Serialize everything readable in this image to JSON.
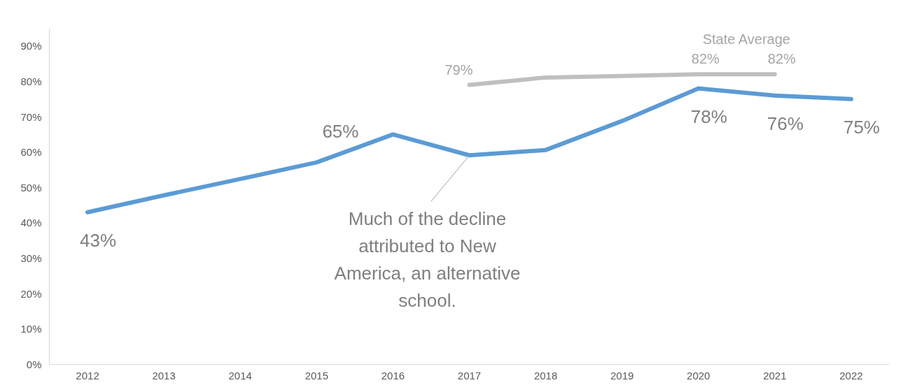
{
  "chart_data": {
    "type": "line",
    "categories": [
      "2012",
      "2013",
      "2014",
      "2015",
      "2016",
      "2017",
      "2018",
      "2019",
      "2020",
      "2021",
      "2022"
    ],
    "series": [
      {
        "color": "#5b9bd5",
        "values": [
          43,
          47.8,
          52.4,
          57.1,
          65,
          59.1,
          60.6,
          68.8,
          78,
          76,
          75
        ],
        "value_labels": [
          "43%",
          null,
          null,
          null,
          "65%",
          null,
          null,
          null,
          "78%",
          "76%",
          "75%"
        ]
      },
      {
        "name": "State Average",
        "color": "#bfbfbf",
        "values": [
          null,
          null,
          null,
          null,
          null,
          79,
          81.1,
          81.5,
          82,
          82,
          null
        ],
        "value_labels": [
          null,
          null,
          null,
          null,
          null,
          "79%",
          null,
          null,
          "82%",
          "82%",
          null
        ]
      }
    ],
    "ylim": [
      0,
      95
    ],
    "yticks": [
      {
        "value": 0,
        "label": "0%"
      },
      {
        "value": 10,
        "label": "10%"
      },
      {
        "value": 20,
        "label": "20%"
      },
      {
        "value": 30,
        "label": "30%"
      },
      {
        "value": 40,
        "label": "40%"
      },
      {
        "value": 50,
        "label": "50%"
      },
      {
        "value": 60,
        "label": "60%"
      },
      {
        "value": 70,
        "label": "70%"
      },
      {
        "value": 80,
        "label": "80%"
      },
      {
        "value": 90,
        "label": "90%"
      }
    ],
    "annotations": [
      {
        "text": "Much of the decline attributed to New America, an alternative school.",
        "x": "2017",
        "y": 59.1
      }
    ],
    "grid": false,
    "marker": "none",
    "line_style": "solid"
  }
}
